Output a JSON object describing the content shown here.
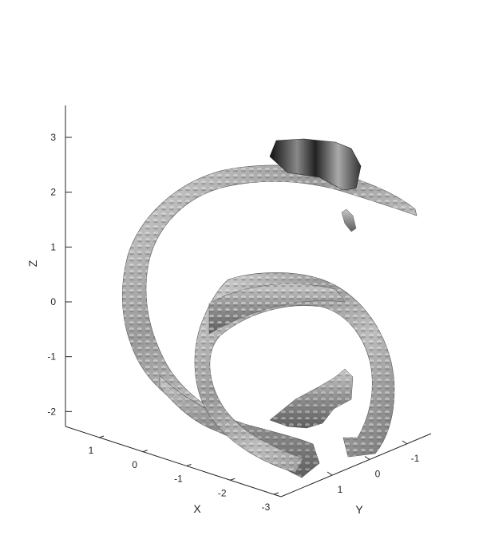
{
  "chart_data": {
    "type": "isosurface-3d",
    "title": "",
    "xlabel": "X",
    "ylabel": "Y",
    "zlabel": "Z",
    "x_ticks": [
      1,
      0,
      -1,
      -2,
      -3
    ],
    "y_ticks": [
      1,
      0,
      -1
    ],
    "z_ticks": [
      3,
      2,
      1,
      0,
      -1,
      -2
    ],
    "xlim": [
      1.5,
      -3
    ],
    "ylim": [
      1.6,
      -1.4
    ],
    "zlim": [
      -2.3,
      3.5
    ],
    "grid": false,
    "colormap": "gray",
    "colors": {
      "surface_base": "#8c8c8c",
      "surface_highlight": "#e6e6e6",
      "surface_shadow": "#2a2a2a",
      "axis": "#262626"
    },
    "surfaces": [
      {
        "shape": "outer-spiral-ring",
        "z_top": 2.5,
        "z_bottom": -2.1
      },
      {
        "shape": "inner-ring",
        "z_top": 0.4,
        "z_bottom": -2.6
      }
    ]
  }
}
